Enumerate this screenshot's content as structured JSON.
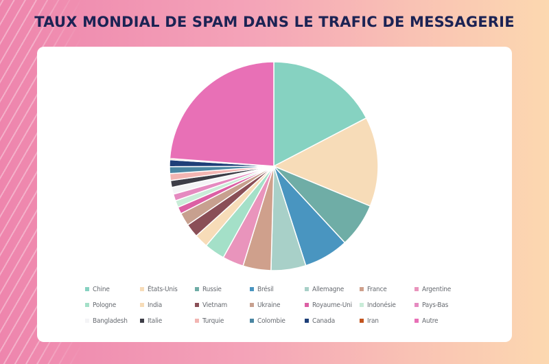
{
  "title": "TAUX MONDIAL DE SPAM DANS LE TRAFIC DE MESSAGERIE",
  "chart_data": {
    "type": "pie",
    "title": "TAUX MONDIAL DE SPAM DANS LE TRAFIC DE MESSAGERIE",
    "legend_position": "bottom",
    "slices": [
      {
        "label": "Chine",
        "value": 18,
        "color": "#86d2c1"
      },
      {
        "label": "États-Unis",
        "value": 14.4,
        "color": "#f7dcb8"
      },
      {
        "label": "Russie",
        "value": 7.1,
        "color": "#6fada6"
      },
      {
        "label": "Brésil",
        "value": 7.2,
        "color": "#4995c0"
      },
      {
        "label": "Allemagne",
        "value": 5.6,
        "color": "#a8d0c8"
      },
      {
        "label": "France",
        "value": 4.5,
        "color": "#cfa08c"
      },
      {
        "label": "Argentine",
        "value": 3.4,
        "color": "#e994bc"
      },
      {
        "label": "Pologne",
        "value": 3.3,
        "color": "#a4e0c8"
      },
      {
        "label": "India",
        "value": 2.2,
        "color": "#f7dcb8"
      },
      {
        "label": "Vietnam",
        "value": 2.2,
        "color": "#8a4f57"
      },
      {
        "label": "Ukraine",
        "value": 2.1,
        "color": "#c7a08f"
      },
      {
        "label": "Royaume-Uni",
        "value": 1.1,
        "color": "#dc5fa4"
      },
      {
        "label": "Indonésie",
        "value": 1.1,
        "color": "#c9ecd8"
      },
      {
        "label": "Pays-Bas",
        "value": 1.1,
        "color": "#e58ac0"
      },
      {
        "label": "Bangladesh",
        "value": 1.1,
        "color": "#f4f4f6"
      },
      {
        "label": "Italie",
        "value": 1.1,
        "color": "#3d3d47"
      },
      {
        "label": "Turquie",
        "value": 1.1,
        "color": "#f2b5b2"
      },
      {
        "label": "Colombie",
        "value": 1.1,
        "color": "#4a86a2"
      },
      {
        "label": "Canada",
        "value": 1.1,
        "color": "#1e3f78"
      },
      {
        "label": "Iran",
        "value": 0.2,
        "color": "#c2541e"
      },
      {
        "label": "Autre",
        "value": 24.7,
        "color": "#e870b6"
      }
    ]
  }
}
